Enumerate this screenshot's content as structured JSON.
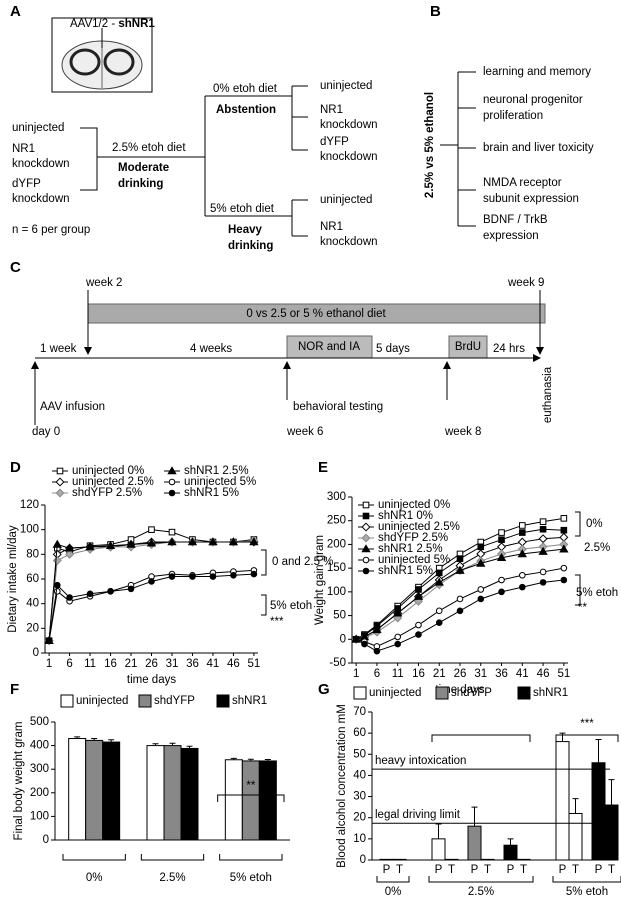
{
  "panels": {
    "A": {
      "label": "A",
      "vector": [
        "AAV1/2 - ",
        "shNR1"
      ],
      "n": "n = 6 per group",
      "start": [
        [
          "uninjected"
        ],
        [
          "NR1",
          "knockdown"
        ],
        [
          "dYFP",
          "knockdown"
        ]
      ],
      "moderate": {
        "diet": "2.5% etoh diet",
        "name": [
          "Moderate",
          "drinking"
        ]
      },
      "abstention": {
        "diet": "0% etoh diet",
        "name": "Abstention",
        "groups": [
          [
            "uninjected"
          ],
          [
            "NR1",
            "knockdown"
          ],
          [
            "dYFP",
            "knockdown"
          ]
        ]
      },
      "heavy": {
        "diet": "5% etoh diet",
        "name": [
          "Heavy",
          "drinking"
        ],
        "groups": [
          [
            "uninjected"
          ],
          [
            "NR1",
            "knockdown"
          ]
        ]
      }
    },
    "B": {
      "label": "B",
      "comparison": "2.5% vs 5% ethanol",
      "outcomes": [
        [
          "learning and memory"
        ],
        [
          "neuronal progenitor",
          "proliferation"
        ],
        [
          "brain and liver toxicity"
        ],
        [
          "NMDA receptor",
          "subunit expression"
        ],
        [
          "BDNF / TrkB",
          "expression"
        ]
      ]
    },
    "C": {
      "label": "C",
      "diet": "0  vs  2.5  or  5  %  ethanol  diet",
      "week2": "week 2",
      "week9": "week 9",
      "phases": [
        "1 week",
        "4 weeks",
        "NOR and IA",
        "5 days",
        "BrdU",
        "24 hrs"
      ],
      "events": [
        "AAV infusion",
        "day 0",
        "behavioral testing",
        "week 6",
        "week 8",
        "euthanasia"
      ]
    }
  },
  "chart_data": [
    {
      "type": "line",
      "panel": "D",
      "ylabel": "Dietary intake   ml/day",
      "xlabel": "time    days",
      "x": [
        1,
        3,
        6,
        11,
        16,
        21,
        26,
        31,
        36,
        41,
        46,
        51
      ],
      "xlim": [
        0,
        52
      ],
      "xticks": [
        1,
        6,
        11,
        16,
        21,
        26,
        31,
        36,
        41,
        46,
        51
      ],
      "ylim": [
        0,
        120
      ],
      "yticks": [
        0,
        20,
        40,
        60,
        80,
        100,
        120
      ],
      "series": [
        {
          "name": "uninjected 0%",
          "color": "#000000",
          "marker": "square-open",
          "values": [
            10,
            85,
            82,
            87,
            88,
            92,
            100,
            98,
            92,
            90,
            90,
            92
          ]
        },
        {
          "name": "uninjected 2.5%",
          "color": "#000000",
          "marker": "diamond-open",
          "values": [
            10,
            80,
            85,
            86,
            86,
            88,
            90,
            90,
            90,
            90,
            90,
            90
          ]
        },
        {
          "name": "shdYFP 2.5%",
          "color": "#888888",
          "marker": "diamond-grey",
          "values": [
            10,
            75,
            80,
            84,
            86,
            86,
            88,
            90,
            90,
            90,
            90,
            91
          ]
        },
        {
          "name": "shNR1 2.5%",
          "color": "#000000",
          "marker": "triangle",
          "values": [
            10,
            88,
            85,
            86,
            87,
            88,
            89,
            90,
            90,
            90,
            90,
            90
          ]
        },
        {
          "name": "uninjected 5%",
          "color": "#000000",
          "marker": "circle-open",
          "values": [
            10,
            50,
            42,
            46,
            50,
            55,
            62,
            64,
            63,
            65,
            66,
            67
          ]
        },
        {
          "name": "shNR1 5%",
          "color": "#000000",
          "marker": "circle",
          "values": [
            10,
            55,
            45,
            48,
            50,
            52,
            58,
            62,
            62,
            62,
            63,
            64
          ]
        }
      ],
      "annotations": [
        "0 and 2.5 %",
        "5% etoh",
        "***"
      ]
    },
    {
      "type": "line",
      "panel": "E",
      "ylabel": "Weight gain   gram",
      "xlabel": "time    days",
      "x": [
        1,
        3,
        6,
        11,
        16,
        21,
        26,
        31,
        36,
        41,
        46,
        51
      ],
      "xlim": [
        0,
        52
      ],
      "xticks": [
        1,
        6,
        11,
        16,
        21,
        26,
        31,
        36,
        41,
        46,
        51
      ],
      "ylim": [
        -50,
        300
      ],
      "yticks": [
        -50,
        0,
        50,
        100,
        150,
        200,
        250,
        300
      ],
      "series": [
        {
          "name": "uninjected 0%",
          "color": "#000000",
          "marker": "square-open",
          "values": [
            0,
            10,
            30,
            70,
            110,
            150,
            180,
            205,
            225,
            240,
            248,
            255
          ]
        },
        {
          "name": "shNR1 0%",
          "color": "#000000",
          "marker": "square",
          "values": [
            0,
            8,
            28,
            65,
            105,
            140,
            170,
            195,
            210,
            225,
            232,
            230
          ]
        },
        {
          "name": "uninjected 2.5%",
          "color": "#000000",
          "marker": "diamond-open",
          "values": [
            0,
            5,
            20,
            55,
            90,
            125,
            155,
            180,
            195,
            205,
            212,
            215
          ]
        },
        {
          "name": "shdYFP 2.5%",
          "color": "#888888",
          "marker": "diamond-grey",
          "values": [
            0,
            3,
            15,
            45,
            80,
            115,
            145,
            165,
            180,
            190,
            195,
            200
          ]
        },
        {
          "name": "shNR1 2.5%",
          "color": "#000000",
          "marker": "triangle",
          "values": [
            0,
            5,
            20,
            55,
            90,
            120,
            145,
            160,
            172,
            180,
            185,
            190
          ]
        },
        {
          "name": "uninjected 5%",
          "color": "#000000",
          "marker": "circle-open",
          "values": [
            0,
            -5,
            -15,
            5,
            30,
            60,
            85,
            105,
            125,
            135,
            142,
            150
          ]
        },
        {
          "name": "shNR1 5%",
          "color": "#000000",
          "marker": "circle",
          "values": [
            0,
            -10,
            -25,
            -10,
            10,
            35,
            60,
            85,
            100,
            110,
            120,
            125
          ]
        }
      ],
      "annotations": [
        "0%",
        "2.5%",
        "5% etoh",
        "**"
      ]
    },
    {
      "type": "bar",
      "panel": "F",
      "ylabel": "Final body weight   gram",
      "categories": [
        "0%",
        "2.5%",
        "5%   etoh"
      ],
      "ylim": [
        0,
        500
      ],
      "yticks": [
        0,
        100,
        200,
        300,
        400,
        500
      ],
      "series": [
        {
          "name": "uninjected",
          "color": "#ffffff",
          "values": [
            430,
            400,
            340
          ],
          "errors": [
            7,
            8,
            6
          ]
        },
        {
          "name": "shdYFP",
          "color": "#888888",
          "values": [
            422,
            400,
            335
          ],
          "errors": [
            8,
            10,
            7
          ]
        },
        {
          "name": "shNR1",
          "color": "#000000",
          "values": [
            415,
            388,
            335
          ],
          "errors": [
            10,
            9,
            6
          ]
        }
      ],
      "annotations": [
        "**"
      ]
    },
    {
      "type": "pairbar",
      "panel": "G",
      "ylabel": "Blood alcohol concentration   mM",
      "groups": [
        {
          "label": "0%",
          "categories": [
            "P",
            "T"
          ]
        },
        {
          "label": "2.5%",
          "categories": [
            "P",
            "T",
            "P",
            "T",
            "P",
            "T"
          ]
        },
        {
          "label": "5%   etoh",
          "categories": [
            "P",
            "T",
            "P",
            "T"
          ]
        }
      ],
      "ylim": [
        0,
        70
      ],
      "yticks": [
        0,
        10,
        20,
        30,
        40,
        50,
        60,
        70
      ],
      "series": [
        {
          "name": "uninjected",
          "color": "#ffffff",
          "values": [
            0.3,
            0.3,
            10,
            0.3,
            null,
            null,
            null,
            null,
            56,
            22,
            null,
            null
          ],
          "errors": [
            null,
            null,
            7,
            null,
            null,
            null,
            null,
            null,
            4,
            7,
            null,
            null
          ]
        },
        {
          "name": "shdYFP",
          "color": "#888888",
          "values": [
            null,
            null,
            null,
            null,
            16,
            0.3,
            null,
            null,
            null,
            null,
            null,
            null
          ],
          "errors": [
            null,
            null,
            null,
            null,
            9,
            null,
            null,
            null,
            null,
            null,
            null,
            null
          ]
        },
        {
          "name": "shNR1",
          "color": "#000000",
          "values": [
            null,
            null,
            null,
            null,
            null,
            null,
            7,
            0.3,
            null,
            null,
            46,
            26
          ],
          "errors": [
            null,
            null,
            null,
            null,
            null,
            null,
            3,
            null,
            null,
            null,
            11,
            12
          ]
        }
      ],
      "reference_lines": [
        {
          "label": "heavy intoxication",
          "value": 43
        },
        {
          "label": "legal driving limit",
          "value": 17.4
        }
      ],
      "annotations": [
        "***"
      ]
    }
  ]
}
